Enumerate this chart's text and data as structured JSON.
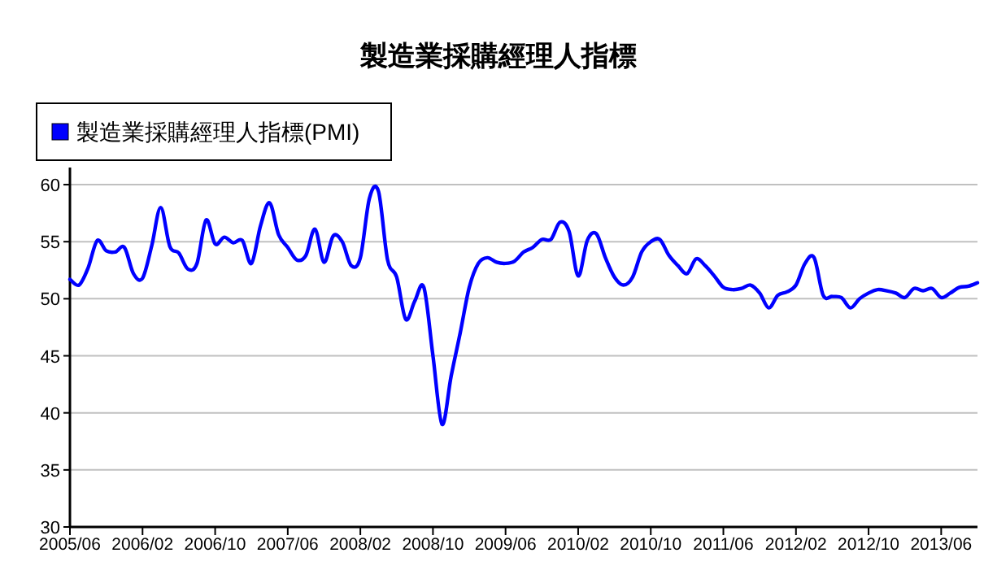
{
  "chart_data": {
    "type": "line",
    "title": "製造業採購經理人指標",
    "legend": "top left",
    "grid": "y",
    "line_style": "solid",
    "marker": "none",
    "x": [
      "2005-06",
      "2005-07",
      "2005-08",
      "2005-09",
      "2005-10",
      "2005-11",
      "2005-12",
      "2006-01",
      "2006-02",
      "2006-03",
      "2006-04",
      "2006-05",
      "2006-06",
      "2006-07",
      "2006-08",
      "2006-09",
      "2006-10",
      "2006-11",
      "2006-12",
      "2007-01",
      "2007-02",
      "2007-03",
      "2007-04",
      "2007-05",
      "2007-06",
      "2007-07",
      "2007-08",
      "2007-09",
      "2007-10",
      "2007-11",
      "2007-12",
      "2008-01",
      "2008-02",
      "2008-03",
      "2008-04",
      "2008-05",
      "2008-06",
      "2008-07",
      "2008-08",
      "2008-09",
      "2008-10",
      "2008-11",
      "2008-12",
      "2009-01",
      "2009-02",
      "2009-03",
      "2009-04",
      "2009-05",
      "2009-06",
      "2009-07",
      "2009-08",
      "2009-09",
      "2009-10",
      "2009-11",
      "2009-12",
      "2010-01",
      "2010-02",
      "2010-03",
      "2010-04",
      "2010-05",
      "2010-06",
      "2010-07",
      "2010-08",
      "2010-09",
      "2010-10",
      "2010-11",
      "2010-12",
      "2011-01",
      "2011-02",
      "2011-03",
      "2011-04",
      "2011-05",
      "2011-06",
      "2011-07",
      "2011-08",
      "2011-09",
      "2011-10",
      "2011-11",
      "2011-12",
      "2012-01",
      "2012-02",
      "2012-03",
      "2012-04",
      "2012-05",
      "2012-06",
      "2012-07",
      "2012-08",
      "2012-09",
      "2012-10",
      "2012-11",
      "2012-12",
      "2013-01",
      "2013-02",
      "2013-03",
      "2013-04",
      "2013-05",
      "2013-06",
      "2013-07",
      "2013-08",
      "2013-09",
      "2013-10"
    ],
    "series": [
      {
        "name": "製造業採購經理人指標(PMI)",
        "color": "#0000ff",
        "values": [
          51.7,
          51.2,
          52.7,
          55.1,
          54.2,
          54.1,
          54.5,
          52.2,
          51.8,
          54.6,
          58.0,
          54.6,
          54.0,
          52.6,
          53.1,
          56.9,
          54.8,
          55.4,
          54.9,
          55.1,
          53.1,
          56.4,
          58.4,
          55.6,
          54.5,
          53.4,
          53.8,
          56.1,
          53.2,
          55.5,
          55.0,
          52.9,
          53.6,
          58.8,
          59.4,
          53.4,
          51.9,
          48.2,
          49.8,
          51.0,
          45.0,
          39.0,
          43.2,
          47.0,
          51.0,
          53.1,
          53.6,
          53.2,
          53.1,
          53.3,
          54.1,
          54.5,
          55.2,
          55.2,
          56.7,
          55.9,
          52.0,
          55.1,
          55.7,
          53.6,
          51.9,
          51.2,
          51.9,
          54.1,
          55.0,
          55.2,
          53.8,
          52.9,
          52.2,
          53.5,
          52.9,
          52.0,
          51.0,
          50.8,
          50.9,
          51.2,
          50.5,
          49.2,
          50.3,
          50.6,
          51.2,
          53.1,
          53.6,
          50.3,
          50.2,
          50.1,
          49.2,
          50.0,
          50.5,
          50.8,
          50.7,
          50.5,
          50.1,
          50.9,
          50.7,
          50.9,
          50.1,
          50.5,
          51.0,
          51.1,
          51.4
        ]
      }
    ],
    "xlim": [
      "2005-06",
      "2013-10"
    ],
    "xticks": [
      {
        "value": "2005-06",
        "label": "2005/06"
      },
      {
        "value": "2006-02",
        "label": "2006/02"
      },
      {
        "value": "2006-10",
        "label": "2006/10"
      },
      {
        "value": "2007-06",
        "label": "2007/06"
      },
      {
        "value": "2008-02",
        "label": "2008/02"
      },
      {
        "value": "2008-10",
        "label": "2008/10"
      },
      {
        "value": "2009-06",
        "label": "2009/06"
      },
      {
        "value": "2010-02",
        "label": "2010/02"
      },
      {
        "value": "2010-10",
        "label": "2010/10"
      },
      {
        "value": "2011-06",
        "label": "2011/06"
      },
      {
        "value": "2012-02",
        "label": "2012/02"
      },
      {
        "value": "2012-10",
        "label": "2012/10"
      },
      {
        "value": "2013-06",
        "label": "2013/06"
      }
    ],
    "ylim": [
      30,
      61.5
    ],
    "yticks": [
      30,
      35,
      40,
      45,
      50,
      55,
      60
    ]
  }
}
